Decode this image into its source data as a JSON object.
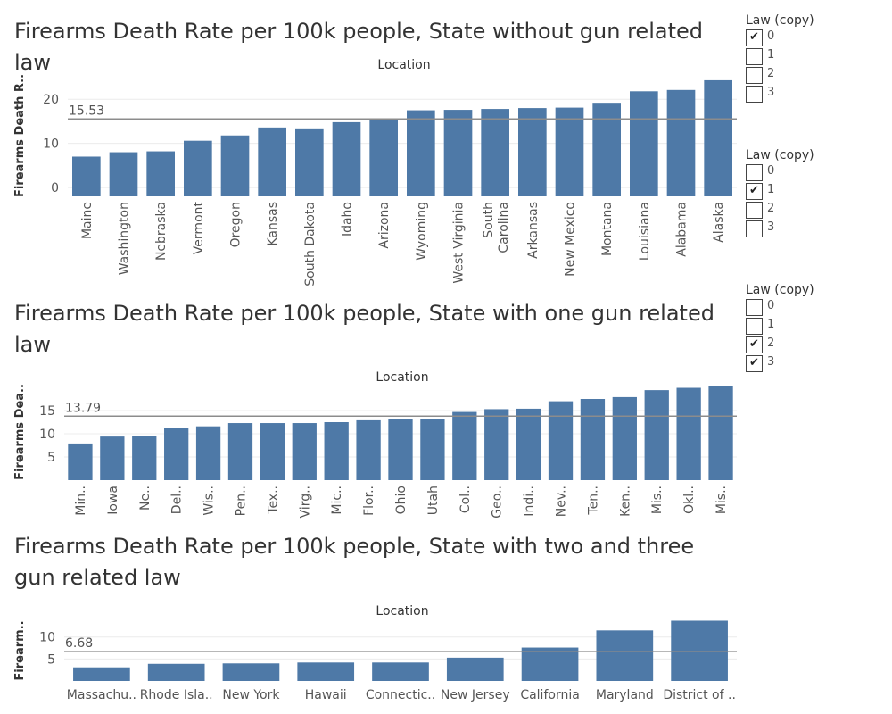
{
  "chart_data": [
    {
      "type": "bar",
      "title": "Firearms Death Rate per 100k people, State without gun related law",
      "header": "Location",
      "ylabel": "Firearms Death R..",
      "ylim": [
        -2,
        25.5
      ],
      "yticks": [
        0,
        10,
        20
      ],
      "reference": 15.53,
      "reference_label": "15.53",
      "categories": [
        "Maine",
        "Washington",
        "Nebraska",
        "Vermont",
        "Oregon",
        "Kansas",
        "South Dakota",
        "Idaho",
        "Arizona",
        "Wyoming",
        "West Virginia",
        "South Carolina",
        "Arkansas",
        "New Mexico",
        "Montana",
        "Louisiana",
        "Alabama",
        "Alaska"
      ],
      "tick_labels": [
        [
          "Maine"
        ],
        [
          "Washington"
        ],
        [
          "Nebraska"
        ],
        [
          "Vermont"
        ],
        [
          "Oregon"
        ],
        [
          "Kansas"
        ],
        [
          "South Dakota"
        ],
        [
          "Idaho"
        ],
        [
          "Arizona"
        ],
        [
          "Wyoming"
        ],
        [
          "West Virginia"
        ],
        [
          "South",
          "Carolina"
        ],
        [
          "Arkansas"
        ],
        [
          "New Mexico"
        ],
        [
          "Montana"
        ],
        [
          "Louisiana"
        ],
        [
          "Alabama"
        ],
        [
          "Alaska"
        ]
      ],
      "values": [
        7.0,
        8.0,
        8.2,
        10.6,
        11.8,
        13.6,
        13.4,
        14.8,
        15.3,
        17.5,
        17.6,
        17.8,
        18.0,
        18.1,
        19.2,
        21.8,
        22.1,
        24.3
      ],
      "bar_color": "#4e79a7"
    },
    {
      "type": "bar",
      "title": "Firearms Death Rate per 100k people, State with one gun related law",
      "header": "Location",
      "ylabel": "Firearms Dea..",
      "ylim": [
        0,
        20
      ],
      "yticks": [
        5,
        10,
        15
      ],
      "reference": 13.79,
      "reference_label": "13.79",
      "categories": [
        "Min..",
        "Iowa",
        "Ne..",
        "Del..",
        "Wis..",
        "Pen..",
        "Tex..",
        "Virg..",
        "Mic..",
        "Flor..",
        "Ohio",
        "Utah",
        "Col..",
        "Geo..",
        "Indi..",
        "Nev..",
        "Ten..",
        "Ken..",
        "Mis..",
        "Okl..",
        "Mis.."
      ],
      "tick_labels": [
        [
          "Min.."
        ],
        [
          "Iowa"
        ],
        [
          "Ne.."
        ],
        [
          "Del.."
        ],
        [
          "Wis.."
        ],
        [
          "Pen.."
        ],
        [
          "Tex.."
        ],
        [
          "Virg.."
        ],
        [
          "Mic.."
        ],
        [
          "Flor.."
        ],
        [
          "Ohio"
        ],
        [
          "Utah"
        ],
        [
          "Col.."
        ],
        [
          "Geo.."
        ],
        [
          "Indi.."
        ],
        [
          "Nev.."
        ],
        [
          "Ten.."
        ],
        [
          "Ken.."
        ],
        [
          "Mis.."
        ],
        [
          "Okl.."
        ],
        [
          "Mis.."
        ]
      ],
      "values": [
        7.9,
        9.4,
        9.5,
        11.2,
        11.6,
        12.3,
        12.3,
        12.3,
        12.5,
        12.9,
        13.1,
        13.1,
        14.7,
        15.3,
        15.4,
        17.0,
        17.5,
        17.9,
        19.4,
        19.9,
        20.3
      ],
      "bar_color": "#4e79a7"
    },
    {
      "type": "bar",
      "title": "Firearms Death Rate per 100k people, State with two and three gun related law",
      "header": "Location",
      "ylabel": "Firearm..",
      "ylim": [
        0,
        14
      ],
      "yticks": [
        5,
        10
      ],
      "reference": 6.68,
      "reference_label": "6.68",
      "categories": [
        "Massachu..",
        "Rhode Isla..",
        "New York",
        "Hawaii",
        "Connectic..",
        "New Jersey",
        "California",
        "Maryland",
        "District of .."
      ],
      "tick_labels": [
        [
          "Massachu.."
        ],
        [
          "Rhode Isla.."
        ],
        [
          "New York"
        ],
        [
          "Hawaii"
        ],
        [
          "Connectic.."
        ],
        [
          "New Jersey"
        ],
        [
          "California"
        ],
        [
          "Maryland"
        ],
        [
          "District of .."
        ]
      ],
      "values": [
        3.1,
        3.9,
        4.0,
        4.2,
        4.2,
        5.3,
        7.6,
        11.5,
        13.7
      ],
      "bar_color": "#4e79a7"
    }
  ],
  "filters": [
    {
      "title": "Law (copy)",
      "options": [
        {
          "label": "0",
          "checked": true,
          "check": "✔"
        },
        {
          "label": "1",
          "checked": false
        },
        {
          "label": "2",
          "checked": false
        },
        {
          "label": "3",
          "checked": false
        }
      ]
    },
    {
      "title": "Law (copy)",
      "options": [
        {
          "label": "0",
          "checked": false
        },
        {
          "label": "1",
          "checked": true,
          "check": "✔"
        },
        {
          "label": "2",
          "checked": false
        },
        {
          "label": "3",
          "checked": false
        }
      ]
    },
    {
      "title": "Law (copy)",
      "options": [
        {
          "label": "0",
          "checked": false
        },
        {
          "label": "1",
          "checked": false
        },
        {
          "label": "2",
          "checked": true,
          "check": "✔"
        },
        {
          "label": "3",
          "checked": true,
          "check": "✔"
        }
      ]
    }
  ]
}
